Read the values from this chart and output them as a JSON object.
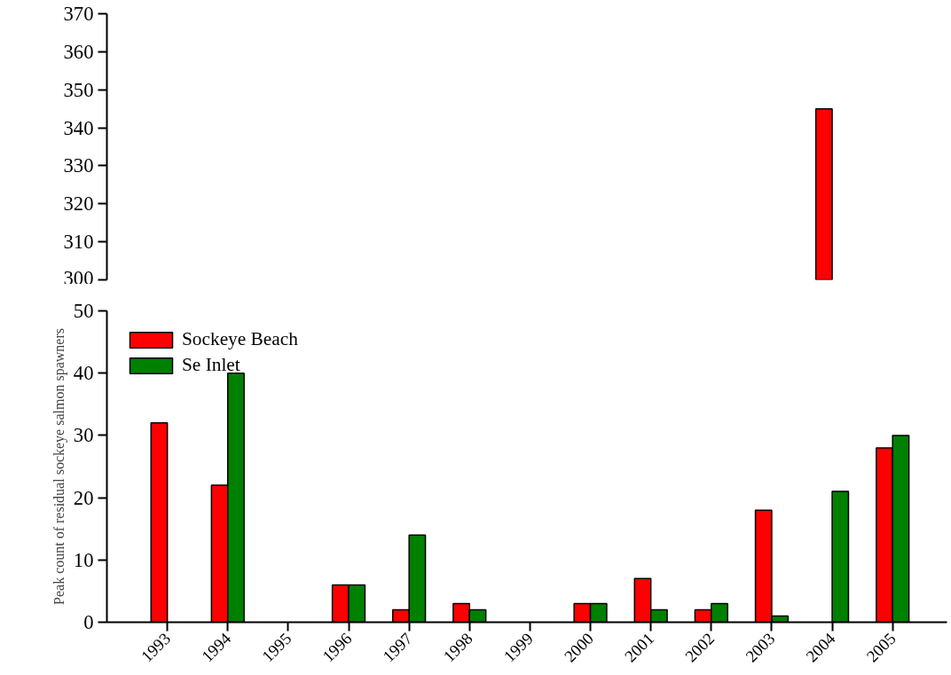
{
  "chart_data": [
    {
      "type": "bar",
      "categories": [
        "1993",
        "1994",
        "1995",
        "1996",
        "1997",
        "1998",
        "1999",
        "2000",
        "2001",
        "2002",
        "2003",
        "2004",
        "2005"
      ],
      "ylim": [
        300,
        370
      ],
      "yticks": [
        300,
        310,
        320,
        330,
        340,
        350,
        360,
        370
      ],
      "tick_labels": "y",
      "grid": false,
      "series": [
        {
          "color": "#ff0000",
          "values": [
            null,
            null,
            null,
            null,
            null,
            null,
            null,
            null,
            null,
            null,
            null,
            345,
            null
          ]
        }
      ]
    },
    {
      "type": "bar",
      "categories": [
        "1993",
        "1994",
        "1995",
        "1996",
        "1997",
        "1998",
        "1999",
        "2000",
        "2001",
        "2002",
        "2003",
        "2004",
        "2005"
      ],
      "ylabel": "Peak count of residual sockeye salmon spawners",
      "ylim": [
        0,
        50
      ],
      "yticks": [
        0,
        10,
        20,
        30,
        40,
        50
      ],
      "grid": false,
      "legend": "top left",
      "series": [
        {
          "name": "Sockeye Beach",
          "color": "#ff0000",
          "values": [
            32,
            22,
            null,
            6,
            2,
            3,
            null,
            3,
            7,
            2,
            18,
            null,
            28
          ]
        },
        {
          "name": "Se Inlet",
          "color": "#008000",
          "values": [
            null,
            40,
            null,
            6,
            14,
            2,
            null,
            3,
            2,
            3,
            1,
            21,
            30
          ]
        }
      ]
    }
  ]
}
